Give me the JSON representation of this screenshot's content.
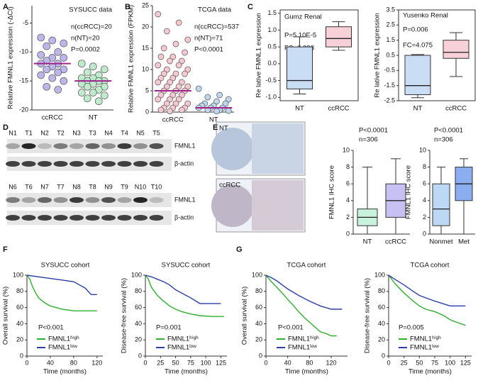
{
  "panel_labels": [
    "A",
    "B",
    "C",
    "D",
    "E",
    "F",
    "G"
  ],
  "blot": {
    "lanes_top": [
      "N1",
      "T1",
      "N2",
      "T2",
      "N3",
      "T3",
      "N4",
      "T4",
      "N5",
      "T5"
    ],
    "lanes_bottom": [
      "N6",
      "T6",
      "N7",
      "T7",
      "N8",
      "T8",
      "N9",
      "T9",
      "N10",
      "T10"
    ],
    "rows": [
      "FMNL1",
      "β-actin",
      "FMNL1",
      "β-actin"
    ]
  },
  "ihc_labels": [
    "NT",
    "ccRCC"
  ],
  "chart_data": [
    {
      "type": "strip",
      "title": "SYSUCC data",
      "ylabel": "Relative FMNL1 expression (-ΔCt)",
      "annotations": [
        "n(ccRCC)=20",
        "n(NT)=20",
        "P=0.0002"
      ],
      "categories": [
        "ccRCC",
        "NT"
      ],
      "series": [
        {
          "color": "#bdb6ea",
          "values": [
            -7.5,
            -8,
            -8.5,
            -9,
            -10,
            -10.5,
            -11,
            -11,
            -11.5,
            -12,
            -12,
            -12.5,
            -13,
            -13,
            -13.5,
            -14,
            -14.5,
            -15,
            -16,
            -16.5
          ]
        },
        {
          "color": "#bfeacb",
          "values": [
            -12,
            -12.5,
            -13,
            -13.5,
            -14,
            -14.5,
            -14.5,
            -15,
            -15,
            -15,
            -15.5,
            -15.5,
            -16,
            -16,
            -16.5,
            -17,
            -17,
            -17.5,
            -18,
            -18.5
          ]
        }
      ],
      "means": [
        -12,
        -15
      ],
      "mean_color": "#a0228c",
      "ylim": [
        -20,
        -2
      ],
      "yticks": [
        -20,
        -15,
        -10,
        -5
      ]
    },
    {
      "type": "strip",
      "title": "TCGA data",
      "ylabel": "Relative FMNL1 expression (FPKM)",
      "annotations": [
        "n(ccRCC)=537",
        "n(NT)=71",
        "P<0.0001"
      ],
      "categories": [
        "ccRCC",
        "NT"
      ],
      "series": [
        {
          "color": "#f6c8d0",
          "values": [
            23,
            21,
            19,
            17,
            16,
            15,
            14,
            13,
            13,
            12,
            12,
            11,
            11,
            10,
            10,
            9,
            9,
            9,
            8,
            8,
            7,
            7,
            7,
            6,
            6,
            6,
            5,
            5,
            5,
            4,
            4,
            4,
            3,
            3,
            3,
            2,
            2,
            2,
            1,
            1,
            1,
            0.5,
            0.5,
            0.2
          ]
        },
        {
          "color": "#bcd7ee",
          "values": [
            5.5,
            4,
            3.5,
            3,
            2.5,
            2,
            2,
            1.5,
            1.5,
            1,
            1,
            1,
            0.5,
            0.5,
            0.3,
            0.2
          ]
        }
      ],
      "means": [
        5,
        1
      ],
      "mean_color": "#a0228c",
      "ylim": [
        0,
        25
      ],
      "yticks": [
        0,
        5,
        10,
        15,
        20,
        25
      ]
    },
    {
      "type": "box",
      "title": "Gumz Renal",
      "ylabel": "Re lative FMNL1 expression",
      "annotations": [
        "P=5.10E-5",
        "FC=3.828"
      ],
      "categories": [
        "NT",
        "ccRCC"
      ],
      "colors": [
        "#c9ddf5",
        "#f8d0d8"
      ],
      "min": [
        -0.9,
        0.4
      ],
      "q1": [
        -0.75,
        0.5
      ],
      "median": [
        -0.5,
        0.75
      ],
      "q3": [
        0.5,
        1.1
      ],
      "max": [
        0.8,
        1.25
      ],
      "ylim": [
        -1.1,
        1.6
      ],
      "yticks": [
        {
          "value": -1,
          "label": "-1.0"
        },
        -0.5,
        {
          "value": 0,
          "label": "0.0"
        },
        0.5,
        {
          "value": 1,
          "label": "1.0"
        },
        1.5
      ]
    },
    {
      "type": "box",
      "title": "Yusenko Renal",
      "ylabel": "Re lative FMNL1 expression",
      "annotations": [
        "P=0.006",
        "FC=4.075"
      ],
      "categories": [
        "NT",
        "ccRCC"
      ],
      "colors": [
        "#c9ddf5",
        "#f8d0d8"
      ],
      "min": [
        -2.3,
        -0.9
      ],
      "q1": [
        -2.1,
        0.3
      ],
      "median": [
        -1.5,
        0.7
      ],
      "q3": [
        0.5,
        1.5
      ],
      "max": [
        0.55,
        2.0
      ],
      "ylim": [
        -2.5,
        3.5
      ],
      "yticks": [
        -2.5,
        -1.5,
        -0.5,
        0.5,
        1.5,
        2.5,
        3.5
      ]
    },
    {
      "type": "box",
      "ylabel": "FMNL1 IHC score",
      "annotations": [
        "P<0.0001",
        "n=306"
      ],
      "categories": [
        "NT",
        "ccRCC"
      ],
      "colors": [
        "#c9f2dd",
        "#c7c0f2"
      ],
      "min": [
        0,
        0
      ],
      "q1": [
        1,
        2
      ],
      "median": [
        2,
        4
      ],
      "q3": [
        3,
        6
      ],
      "max": [
        8,
        9
      ],
      "ylim": [
        0,
        10
      ],
      "yticks": [
        0,
        2,
        4,
        6,
        8,
        10
      ]
    },
    {
      "type": "box",
      "ylabel": "FMNL1 IHC score",
      "annotations": [
        "P<0.0001",
        "n=306"
      ],
      "categories": [
        "Nonmet",
        "Met"
      ],
      "colors": [
        "#bcd8f5",
        "#8aaef0"
      ],
      "min": [
        0,
        0
      ],
      "q1": [
        1,
        4
      ],
      "median": [
        3,
        6
      ],
      "q3": [
        6,
        8
      ],
      "max": [
        8,
        9
      ],
      "ylim": [
        0,
        10
      ],
      "yticks": [
        0,
        2,
        4,
        6,
        8,
        10
      ]
    },
    {
      "type": "line",
      "title": "SYSUCC cohort",
      "ylabel": "Overall survival (%)",
      "xlabel": "Time (months)",
      "annotations": [
        "P<0.001"
      ],
      "series": [
        {
          "name": "FMNL1ʰⁱᵍʰ",
          "color": "#2db02d",
          "x": [
            0,
            5,
            10,
            15,
            20,
            30,
            40,
            50,
            60,
            70,
            80,
            100,
            110,
            120
          ],
          "values": [
            100,
            95,
            85,
            78,
            72,
            66,
            62,
            60,
            58,
            57,
            56,
            56,
            56,
            56
          ]
        },
        {
          "name": "FMNL1ˡᵒʷ",
          "color": "#2b3ea8",
          "x": [
            0,
            20,
            40,
            60,
            80,
            90,
            100,
            110,
            120
          ],
          "values": [
            100,
            98,
            96,
            94,
            92,
            88,
            84,
            76,
            76
          ]
        }
      ],
      "xlim": [
        0,
        130
      ],
      "xticks": [
        0,
        40,
        80,
        120
      ],
      "ylim": [
        0,
        100
      ],
      "yticks": [
        0,
        20,
        40,
        60,
        80,
        100
      ]
    },
    {
      "type": "line",
      "title": "SYSUCC cohort",
      "ylabel": "Disease-free survival (%)",
      "xlabel": "Time (months)",
      "annotations": [
        "P=0.001"
      ],
      "series": [
        {
          "name": "FMNL1ʰⁱᵍʰ",
          "color": "#2db02d",
          "x": [
            0,
            5,
            10,
            20,
            30,
            40,
            50,
            60,
            75,
            90,
            110,
            130
          ],
          "values": [
            100,
            95,
            85,
            75,
            68,
            62,
            58,
            55,
            52,
            50,
            49,
            49
          ]
        },
        {
          "name": "FMNL1ˡᵒʷ",
          "color": "#2b3ea8",
          "x": [
            0,
            10,
            20,
            30,
            40,
            50,
            60,
            75,
            90,
            100,
            125
          ],
          "values": [
            100,
            98,
            95,
            92,
            88,
            82,
            78,
            72,
            65,
            65,
            65
          ]
        }
      ],
      "xlim": [
        0,
        135
      ],
      "xticks": [
        0,
        25,
        50,
        75,
        100,
        125
      ],
      "ylim": [
        0,
        100
      ],
      "yticks": [
        0,
        20,
        40,
        60,
        80,
        100
      ]
    },
    {
      "type": "line",
      "title": "TCGA cohort",
      "ylabel": "Overall survival (%)",
      "xlabel": "Time (months)",
      "annotations": [
        "P<0.001"
      ],
      "series": [
        {
          "name": "FMNL1ʰⁱᵍʰ",
          "color": "#2db02d",
          "x": [
            0,
            10,
            20,
            30,
            40,
            50,
            60,
            70,
            80,
            90,
            100,
            110,
            120,
            130
          ],
          "values": [
            100,
            92,
            85,
            78,
            70,
            63,
            55,
            48,
            42,
            36,
            30,
            28,
            25,
            25
          ]
        },
        {
          "name": "FMNL1ˡᵒʷ",
          "color": "#2b3ea8",
          "x": [
            0,
            10,
            20,
            30,
            40,
            60,
            80,
            100,
            120,
            140
          ],
          "values": [
            100,
            97,
            93,
            88,
            83,
            75,
            68,
            62,
            58,
            58
          ]
        }
      ],
      "xlim": [
        0,
        150
      ],
      "xticks": [
        0,
        40,
        80,
        120
      ],
      "ylim": [
        0,
        100
      ],
      "yticks": [
        0,
        20,
        40,
        60,
        80,
        100
      ]
    },
    {
      "type": "line",
      "title": "TCGA cohort",
      "ylabel": "Disease-free survival (%)",
      "xlabel": "Time (months)",
      "annotations": [
        "P=0.005"
      ],
      "series": [
        {
          "name": "FMNL1ʰⁱᵍʰ",
          "color": "#2db02d",
          "x": [
            0,
            10,
            25,
            40,
            50,
            60,
            75,
            90,
            100,
            110,
            125
          ],
          "values": [
            100,
            90,
            78,
            68,
            62,
            58,
            55,
            50,
            45,
            42,
            38
          ]
        },
        {
          "name": "FMNL1ˡᵒʷ",
          "color": "#2b3ea8",
          "x": [
            0,
            10,
            25,
            40,
            50,
            75,
            100,
            125
          ],
          "values": [
            100,
            95,
            88,
            80,
            75,
            68,
            62,
            62
          ]
        }
      ],
      "xlim": [
        0,
        135
      ],
      "xticks": [
        0,
        25,
        50,
        75,
        100,
        125
      ],
      "ylim": [
        0,
        100
      ],
      "yticks": [
        0,
        20,
        40,
        60,
        80,
        100
      ]
    }
  ]
}
